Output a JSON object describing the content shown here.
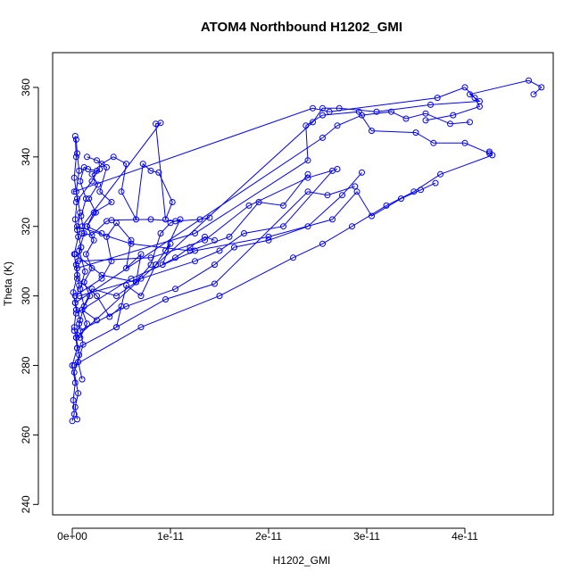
{
  "chart_data": {
    "type": "scatter",
    "title": "ATOM4 Northbound H1202_GMI",
    "xlabel": "H1202_GMI",
    "ylabel": "Theta (K)",
    "xlim": [
      -2e-12,
      4.9e-11
    ],
    "ylim": [
      237,
      370
    ],
    "x_ticks": [
      0,
      1e-11,
      2e-11,
      3e-11,
      4e-11
    ],
    "x_tick_labels": [
      "0e+00",
      "1e-11",
      "2e-11",
      "3e-11",
      "4e-11"
    ],
    "y_ticks": [
      240,
      260,
      280,
      300,
      320,
      340,
      360
    ],
    "y_tick_labels": [
      "240",
      "260",
      "280",
      "300",
      "320",
      "340",
      "360"
    ],
    "grid": false,
    "style": {
      "line_color": "#0000ff",
      "marker": "open-circle",
      "axis_color": "#000000"
    },
    "series": [
      {
        "values": [
          [
            0.0,
            264
          ],
          [
            2e-13,
            266
          ],
          [
            1e-13,
            270
          ],
          [
            3e-13,
            275
          ],
          [
            0.0,
            280
          ],
          [
            5e-13,
            285
          ],
          [
            2e-13,
            291
          ],
          [
            4e-13,
            296
          ],
          [
            1e-13,
            301
          ],
          [
            5e-13,
            306
          ],
          [
            2e-13,
            312
          ],
          [
            6e-13,
            317
          ],
          [
            3e-13,
            322
          ],
          [
            5e-13,
            328
          ],
          [
            2e-13,
            334
          ],
          [
            4e-13,
            340
          ],
          [
            3e-13,
            346
          ]
        ]
      },
      {
        "values": [
          [
            5e-13,
            264.5
          ],
          [
            3e-13,
            268
          ],
          [
            6e-13,
            272
          ],
          [
            2e-13,
            278
          ],
          [
            7e-13,
            283
          ],
          [
            4e-13,
            288
          ],
          [
            8e-13,
            293
          ],
          [
            3e-13,
            298
          ],
          [
            7e-13,
            303
          ],
          [
            4e-13,
            309
          ],
          [
            9e-13,
            314
          ],
          [
            5e-13,
            319
          ],
          [
            8e-13,
            324
          ],
          [
            4e-13,
            330
          ],
          [
            7e-13,
            336
          ],
          [
            5e-13,
            341
          ],
          [
            4e-13,
            345
          ]
        ]
      },
      {
        "values": [
          [
            1e-12,
            276
          ],
          [
            6e-13,
            281
          ],
          [
            1.1e-12,
            286
          ],
          [
            7e-13,
            292
          ],
          [
            1.2e-12,
            297
          ],
          [
            8e-13,
            302
          ],
          [
            1.3e-12,
            307
          ],
          [
            7e-13,
            313
          ],
          [
            1.2e-12,
            318
          ],
          [
            9e-13,
            323
          ],
          [
            1.4e-12,
            328
          ],
          [
            8e-13,
            333
          ],
          [
            1.2e-12,
            337
          ],
          [
            1.6e-12,
            336.5
          ],
          [
            2.5e-12,
            336
          ]
        ]
      },
      {
        "values": [
          [
            2e-13,
            290
          ],
          [
            8e-13,
            288
          ],
          [
            1.5e-12,
            292
          ],
          [
            1e-12,
            296
          ],
          [
            1.8e-12,
            300
          ],
          [
            1.2e-12,
            304
          ],
          [
            2e-12,
            308
          ],
          [
            1.4e-12,
            312
          ],
          [
            2.2e-12,
            316
          ],
          [
            1.5e-12,
            320
          ],
          [
            2.4e-12,
            324
          ],
          [
            1.7e-12,
            328
          ],
          [
            2.6e-12,
            332
          ],
          [
            2e-12,
            335
          ],
          [
            2.8e-12,
            336.5
          ]
        ]
      },
      {
        "values": [
          [
            3e-13,
            300
          ],
          [
            3e-12,
            305
          ],
          [
            4e-12,
            310
          ],
          [
            3.5e-12,
            317
          ],
          [
            4.5e-12,
            321
          ],
          [
            6e-12,
            316
          ],
          [
            5.5e-12,
            308
          ],
          [
            7e-12,
            312
          ],
          [
            6.5e-12,
            304
          ],
          [
            8e-12,
            309
          ],
          [
            9e-12,
            318
          ],
          [
            1e-11,
            321
          ],
          [
            1.1e-11,
            322
          ],
          [
            9.5e-12,
            313
          ]
        ]
      },
      {
        "values": [
          [
            5e-13,
            305
          ],
          [
            2.5e-12,
            300
          ],
          [
            3.8e-12,
            294
          ],
          [
            5e-12,
            297
          ],
          [
            4.5e-12,
            291
          ],
          [
            5.5e-12,
            303
          ],
          [
            7e-12,
            300
          ],
          [
            8.5e-12,
            309
          ],
          [
            1e-11,
            315
          ],
          [
            9.2e-12,
            309
          ],
          [
            1.05e-11,
            311
          ],
          [
            1.2e-11,
            314
          ],
          [
            1.35e-11,
            317
          ],
          [
            1.45e-11,
            316
          ]
        ]
      },
      {
        "values": [
          [
            4e-13,
            327
          ],
          [
            2e-12,
            333
          ],
          [
            3e-12,
            338
          ],
          [
            4.2e-12,
            340
          ],
          [
            5.5e-12,
            338
          ],
          [
            5e-12,
            330
          ],
          [
            6.5e-12,
            322
          ],
          [
            7.2e-12,
            338
          ],
          [
            8e-12,
            336
          ],
          [
            8.8e-12,
            335.5
          ],
          [
            1.02e-11,
            327
          ],
          [
            9.5e-12,
            322
          ],
          [
            8.5e-12,
            349.5
          ],
          [
            9e-12,
            349.8
          ],
          [
            1e-12,
            320
          ]
        ]
      },
      {
        "values": [
          [
            1e-12,
            318
          ],
          [
            2e-12,
            317.5
          ],
          [
            3.5e-12,
            321.5
          ],
          [
            4e-12,
            321.8
          ],
          [
            8e-12,
            322
          ],
          [
            1.05e-11,
            321.5
          ],
          [
            1.3e-11,
            322
          ],
          [
            1.4e-11,
            322.5
          ]
        ]
      },
      {
        "values": [
          [
            5e-13,
            320
          ],
          [
            6e-12,
            315
          ],
          [
            1.2e-11,
            313
          ],
          [
            1.6e-11,
            317
          ],
          [
            1.9e-11,
            327
          ],
          [
            2.15e-11,
            326
          ],
          [
            2.4e-11,
            335
          ]
        ]
      },
      {
        "values": [
          [
            6e-13,
            310
          ],
          [
            8e-12,
            311
          ],
          [
            1.35e-11,
            316
          ],
          [
            1.8e-11,
            326
          ],
          [
            2.4e-11,
            334
          ],
          [
            2.7e-11,
            336.5
          ]
        ]
      },
      {
        "values": [
          [
            7e-13,
            300
          ],
          [
            7e-12,
            305
          ],
          [
            1.25e-11,
            310
          ],
          [
            1.5e-11,
            313
          ],
          [
            1.75e-11,
            318
          ],
          [
            2.15e-11,
            320
          ],
          [
            2.65e-11,
            336
          ]
        ]
      },
      {
        "values": [
          [
            8e-13,
            290
          ],
          [
            5.5e-12,
            297
          ],
          [
            1.05e-11,
            302
          ],
          [
            1.45e-11,
            309
          ],
          [
            1.65e-11,
            314
          ],
          [
            2e-11,
            316
          ],
          [
            2.4e-11,
            320
          ],
          [
            2.75e-11,
            329
          ],
          [
            2.95e-11,
            335.5
          ]
        ]
      },
      {
        "values": [
          [
            5e-13,
            285
          ],
          [
            4.5e-12,
            291
          ],
          [
            9.5e-12,
            299
          ],
          [
            1.45e-11,
            303.5
          ],
          [
            2.4e-11,
            330
          ],
          [
            2.6e-11,
            329
          ],
          [
            2.88e-11,
            331.5
          ]
        ]
      },
      {
        "values": [
          [
            4e-13,
            295
          ],
          [
            6e-12,
            305
          ],
          [
            1.25e-11,
            313
          ],
          [
            2e-11,
            317
          ],
          [
            2.65e-11,
            322
          ],
          [
            2.9e-11,
            330
          ],
          [
            3.05e-11,
            323
          ],
          [
            3.35e-11,
            328
          ],
          [
            3.55e-11,
            330.5
          ],
          [
            3.7e-11,
            332.5
          ]
        ]
      },
      {
        "values": [
          [
            2e-13,
            280
          ],
          [
            7e-12,
            291
          ],
          [
            1.5e-11,
            300
          ],
          [
            2.25e-11,
            311
          ],
          [
            2.55e-11,
            315
          ],
          [
            2.85e-11,
            320
          ],
          [
            3.2e-11,
            326
          ],
          [
            3.48e-11,
            330
          ],
          [
            3.75e-11,
            335
          ],
          [
            4.28e-11,
            340.5
          ],
          [
            4.25e-11,
            341.5
          ]
        ]
      },
      {
        "values": [
          [
            5e-13,
            308
          ],
          [
            1.25e-11,
            318
          ],
          [
            2.4e-11,
            339
          ],
          [
            2.38e-11,
            349
          ],
          [
            2.55e-11,
            352
          ],
          [
            2.92e-11,
            353
          ],
          [
            3.05e-11,
            347.5
          ],
          [
            3.5e-11,
            347
          ],
          [
            3.68e-11,
            344
          ],
          [
            4e-11,
            344
          ],
          [
            4.25e-11,
            341
          ]
        ]
      },
      {
        "values": [
          [
            3e-13,
            298
          ],
          [
            2.55e-11,
            345.5
          ],
          [
            2.7e-11,
            349
          ],
          [
            2.95e-11,
            352
          ],
          [
            3.25e-11,
            353
          ],
          [
            3.4e-11,
            351
          ],
          [
            3.6e-11,
            352.5
          ],
          [
            3.85e-11,
            349.5
          ],
          [
            4.05e-11,
            350
          ]
        ]
      },
      {
        "values": [
          [
            4e-13,
            288
          ],
          [
            2.45e-11,
            350
          ],
          [
            2.55e-11,
            354
          ],
          [
            2.72e-11,
            354
          ],
          [
            3.1e-11,
            353
          ],
          [
            3.65e-11,
            355
          ],
          [
            4.15e-11,
            356
          ],
          [
            4.05e-11,
            358
          ],
          [
            4.65e-11,
            362
          ],
          [
            4.78e-11,
            360
          ],
          [
            4.7e-11,
            358
          ]
        ]
      },
      {
        "values": [
          [
            2e-13,
            330
          ],
          [
            2.45e-11,
            354
          ],
          [
            2.62e-11,
            353
          ],
          [
            3.72e-11,
            357
          ],
          [
            4e-11,
            360
          ],
          [
            4.1e-11,
            357
          ],
          [
            4.15e-11,
            354.5
          ],
          [
            3.88e-11,
            352
          ],
          [
            3.6e-11,
            350.5
          ]
        ]
      },
      {
        "values": [
          [
            3e-13,
            312
          ],
          [
            3e-12,
            306
          ],
          [
            6.5e-12,
            304
          ],
          [
            4.5e-12,
            300
          ],
          [
            2e-12,
            302
          ],
          [
            1e-12,
            296
          ],
          [
            2.5e-12,
            293
          ]
        ]
      },
      {
        "values": [
          [
            1.5e-12,
            340
          ],
          [
            2.5e-12,
            339
          ],
          [
            3.5e-12,
            337
          ],
          [
            2.8e-12,
            330
          ],
          [
            4e-12,
            327
          ],
          [
            2.2e-12,
            324
          ],
          [
            1.5e-12,
            320
          ],
          [
            3e-12,
            318
          ]
        ]
      }
    ]
  }
}
